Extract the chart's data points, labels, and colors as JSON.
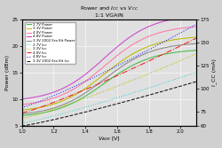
{
  "title_line1": "Power and I_CC vs V_CC",
  "title_line2": "1:1 VGAIN",
  "xlabel": "V_ASK [V]",
  "ylabel_left": "Power (dBm)",
  "ylabel_right": "I_CC (mA)",
  "xlim": [
    1.0,
    2.1
  ],
  "ylim_left": [
    5,
    25
  ],
  "ylim_right": [
    60,
    175
  ],
  "x_ticks": [
    1.0,
    1.2,
    1.4,
    1.6,
    1.8,
    2.0
  ],
  "y_ticks_left": [
    5,
    10,
    15,
    20,
    25
  ],
  "y_ticks_right": [
    60,
    75,
    100,
    125,
    150,
    175
  ],
  "power_lines": [
    {
      "label": "2.7V Power",
      "color": "#44bb44",
      "ls": "-"
    },
    {
      "label": "3.3V Power",
      "color": "#bbbb00",
      "ls": "-"
    },
    {
      "label": "4.0V Power",
      "color": "#ff77aa",
      "ls": "-"
    },
    {
      "label": "4.8V Power",
      "color": "#cc44cc",
      "ls": "-"
    },
    {
      "label": "3.3V 2002 Era Kit Power",
      "color": "#888888",
      "ls": "-"
    }
  ],
  "icc_lines": [
    {
      "label": "2.7V Icc",
      "color": "#44cccc",
      "ls": ":"
    },
    {
      "label": "3.3V Icc",
      "color": "#bbbb00",
      "ls": ":"
    },
    {
      "label": "4.0V Icc",
      "color": "#ee2222",
      "ls": "-."
    },
    {
      "label": "4.8V Icc",
      "color": "#2222ee",
      "ls": ":"
    },
    {
      "label": "3.3V 2002 Era Kit Icc",
      "color": "#111111",
      "ls": "--"
    }
  ],
  "bg_color": "#e0e0e0",
  "fig_bg": "#d0d0d0",
  "grid_color": "#ffffff"
}
